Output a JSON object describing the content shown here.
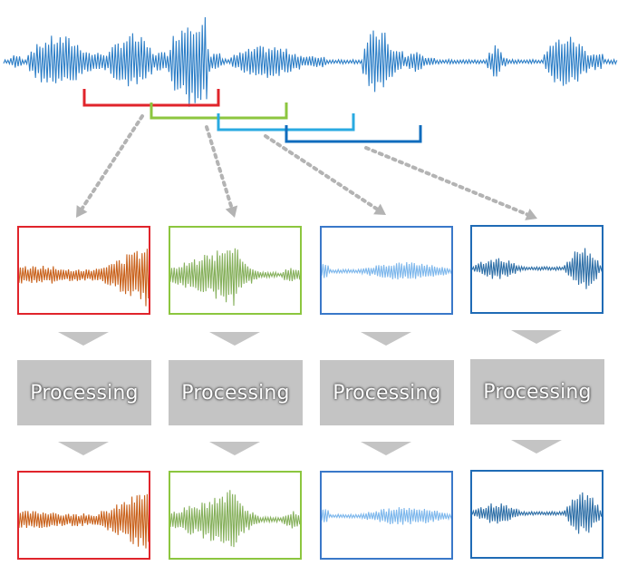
{
  "colors": {
    "source_wave": "#2e7fc7",
    "window_1": "#e0242b",
    "window_2": "#8cc63f",
    "window_3": "#29aae1",
    "window_4": "#0f6cbd",
    "dotted_arrow": "#b3b3b3",
    "gray_arrow": "#c4c4c4",
    "processing_box": "#c4c4c4",
    "frame_1_wave": "#c9621c",
    "frame_2_wave": "#86b05c",
    "frame_3_wave": "#7db7ec",
    "frame_4_wave": "#2e6fa7",
    "frame_1_border": "#e0242b",
    "frame_2_border": "#8cc63f",
    "frame_3_border": "#3a78c9",
    "frame_4_border": "#1f6bb5"
  },
  "columns": [
    {
      "processing_label": "Processing"
    },
    {
      "processing_label": "Processing"
    },
    {
      "processing_label": "Processing"
    },
    {
      "processing_label": "Processing"
    }
  ]
}
